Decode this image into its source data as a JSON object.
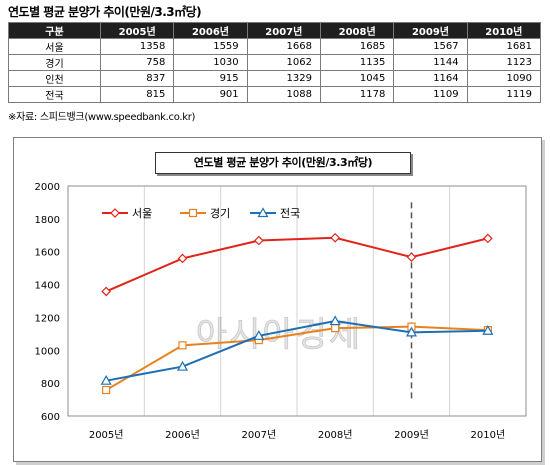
{
  "table": {
    "title": "연도별 평균 분양가 추이(만원/3.3㎡당)",
    "header": [
      "구분",
      "2005년",
      "2006년",
      "2007년",
      "2008년",
      "2009년",
      "2010년"
    ],
    "rows": [
      [
        "서울",
        "1358",
        "1559",
        "1668",
        "1685",
        "1567",
        "1681"
      ],
      [
        "경기",
        "758",
        "1030",
        "1062",
        "1135",
        "1144",
        "1123"
      ],
      [
        "인천",
        "837",
        "915",
        "1329",
        "1045",
        "1164",
        "1090"
      ],
      [
        "전국",
        "815",
        "901",
        "1088",
        "1178",
        "1109",
        "1119"
      ]
    ],
    "source": "※자료: 스피드뱅크(www.speedbank.co.kr)"
  },
  "chart_data": {
    "type": "line",
    "title": "연도별 평균 분양가 추이(만원/3.3㎡당)",
    "categories": [
      "2005년",
      "2006년",
      "2007년",
      "2008년",
      "2009년",
      "2010년"
    ],
    "series": [
      {
        "name": "서울",
        "values": [
          1358,
          1559,
          1668,
          1685,
          1567,
          1681
        ],
        "color": "#e2231a",
        "marker": "diamond"
      },
      {
        "name": "경기",
        "values": [
          758,
          1030,
          1062,
          1135,
          1144,
          1123
        ],
        "color": "#e8821e",
        "marker": "square"
      },
      {
        "name": "전국",
        "values": [
          815,
          901,
          1088,
          1178,
          1109,
          1119
        ],
        "color": "#1f6fb4",
        "marker": "triangle"
      }
    ],
    "xlabel": "",
    "ylabel": "",
    "ylim": [
      600,
      2000
    ],
    "yticks": [
      600,
      800,
      1000,
      1200,
      1400,
      1600,
      1800,
      2000
    ],
    "grid": "vertical",
    "highlight_category": "2009년",
    "legend_position": "top-left",
    "watermark": "아시아경제"
  }
}
